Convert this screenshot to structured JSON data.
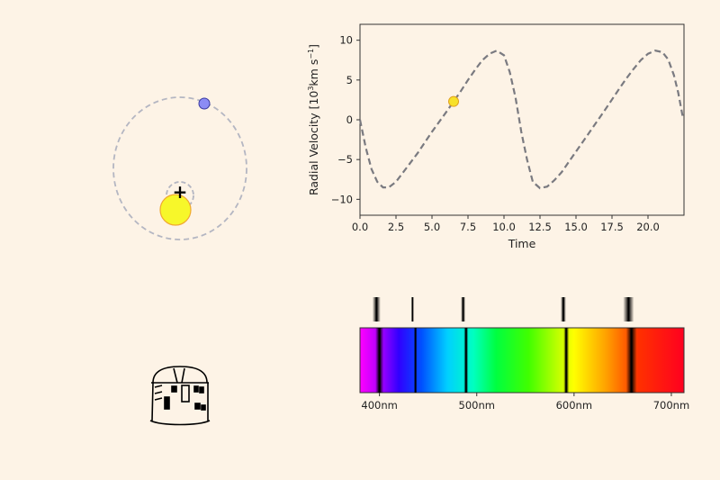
{
  "colors": {
    "background": "#fdf3e6",
    "orbit": "#b4b6c2",
    "planet": "#8c8cf5",
    "star": "#f7f72a",
    "star_edge": "#f0a830",
    "curve": "#7a7a80",
    "marker": "#f7e12a"
  },
  "orbit_diagram": {
    "barycenter_symbol": "+",
    "planet_icon": "planet-icon",
    "star_icon": "star-icon"
  },
  "observatory": {
    "icon": "observatory-dome-icon"
  },
  "spectrum": {
    "ticks": [
      {
        "x": 400,
        "label": "400nm"
      },
      {
        "x": 500,
        "label": "500nm"
      },
      {
        "x": 600,
        "label": "600nm"
      },
      {
        "x": 700,
        "label": "700nm"
      }
    ],
    "absorption_lines_nm": [
      397,
      434,
      486,
      589,
      656
    ]
  },
  "chart_data": {
    "type": "line",
    "title": "",
    "xlabel": "Time",
    "ylabel_text": "Radial Velocity [10",
    "ylabel_sup1": "3",
    "ylabel_unit": "km s",
    "ylabel_sup2": "−1",
    "ylabel_close": "]",
    "xlim": [
      0,
      22.5
    ],
    "ylim": [
      -12,
      12
    ],
    "xticks": [
      0,
      2.5,
      5,
      7.5,
      10,
      12.5,
      15,
      17.5,
      20
    ],
    "xtick_labels": [
      "0.0",
      "2.5",
      "5.0",
      "7.5",
      "10.0",
      "12.5",
      "15.0",
      "17.5",
      "20.0"
    ],
    "yticks": [
      -10,
      -5,
      0,
      5,
      10
    ],
    "ytick_labels": [
      "−10",
      "−5",
      "0",
      "5",
      "10"
    ],
    "grid": false,
    "series": [
      {
        "style": "dashed",
        "x": [
          0,
          0.4,
          0.8,
          1.2,
          1.6,
          2.0,
          2.5,
          3.0,
          4.0,
          5.0,
          6.0,
          6.5,
          7.0,
          7.5,
          8.0,
          8.5,
          9.0,
          9.5,
          10.0,
          10.4,
          10.8,
          11.2,
          11.6,
          12.0,
          12.5,
          13.0,
          13.5,
          14.0,
          15.0,
          16.0,
          17.0,
          18.0,
          18.5,
          19.0,
          19.5,
          20.0,
          20.5,
          21.0,
          21.4,
          21.8,
          22.1,
          22.4
        ],
        "y": [
          0.0,
          -3.5,
          -6.2,
          -7.8,
          -8.5,
          -8.5,
          -7.8,
          -6.6,
          -4.2,
          -1.5,
          1.0,
          2.3,
          3.6,
          5.0,
          6.3,
          7.5,
          8.3,
          8.7,
          8.1,
          6.0,
          2.8,
          -1.5,
          -5.0,
          -7.8,
          -8.6,
          -8.4,
          -7.6,
          -6.6,
          -4.0,
          -1.4,
          1.2,
          3.9,
          5.2,
          6.4,
          7.5,
          8.3,
          8.7,
          8.5,
          7.6,
          5.6,
          3.4,
          0.5
        ]
      }
    ],
    "marker": {
      "x": 6.5,
      "y": 2.3
    }
  }
}
